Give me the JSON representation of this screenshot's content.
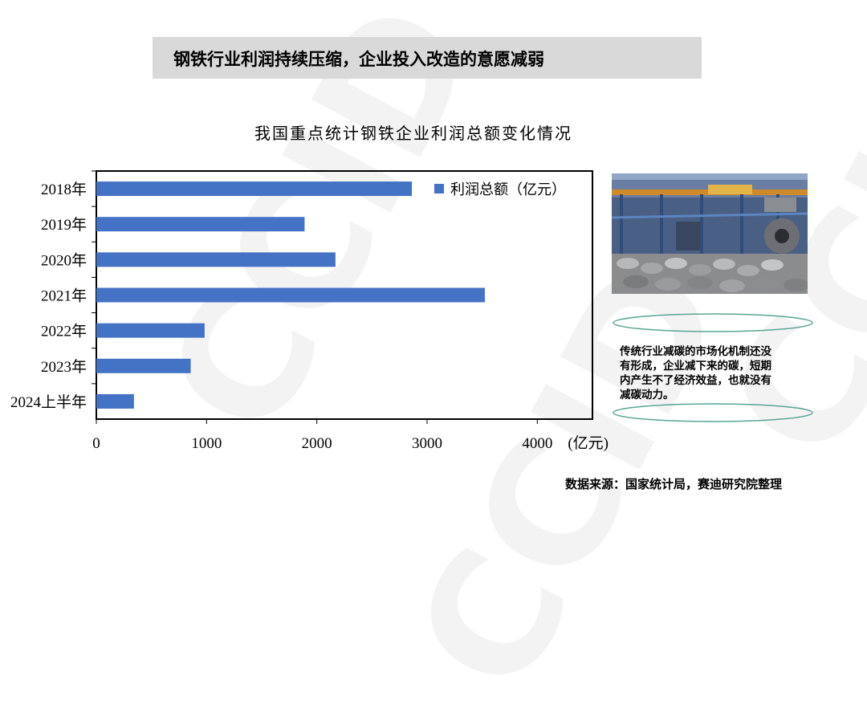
{
  "watermark": {
    "text": "CCID"
  },
  "headline": "钢铁行业利润持续压缩，企业投入改造的意愿减弱",
  "chart_data": {
    "type": "bar",
    "orientation": "horizontal",
    "title": "我国重点统计钢铁企业利润总额变化情况",
    "categories": [
      "2018年",
      "2019年",
      "2020年",
      "2021年",
      "2022年",
      "2023年",
      "2024上半年"
    ],
    "series": [
      {
        "name": "利润总额（亿元）",
        "values": [
          2862,
          1889,
          2169,
          3524,
          982,
          856,
          341
        ],
        "color": "#4472c4"
      }
    ],
    "xlim": [
      0,
      4500
    ],
    "xticks": [
      0,
      1000,
      2000,
      3000,
      4000
    ],
    "xticklabels": [
      "0",
      "1000",
      "2000",
      "3000",
      "4000"
    ],
    "xunit": "(亿元)",
    "grid": false,
    "legend_position": "top-right"
  },
  "photo": {
    "description_icon": "steel-mill-photo-icon"
  },
  "callout": {
    "lines": [
      "传统行业减碳的市场化机制还没",
      "有形成，企业减下来的碳，短期",
      "内产生不了经济效益，也就没有",
      "减碳动力。"
    ]
  },
  "source": "数据来源：国家统计局，赛迪研究院整理",
  "colors": {
    "bar": "#4472c4",
    "headline_bg": "#d9d9d9",
    "callout_line": "#5aa596"
  }
}
